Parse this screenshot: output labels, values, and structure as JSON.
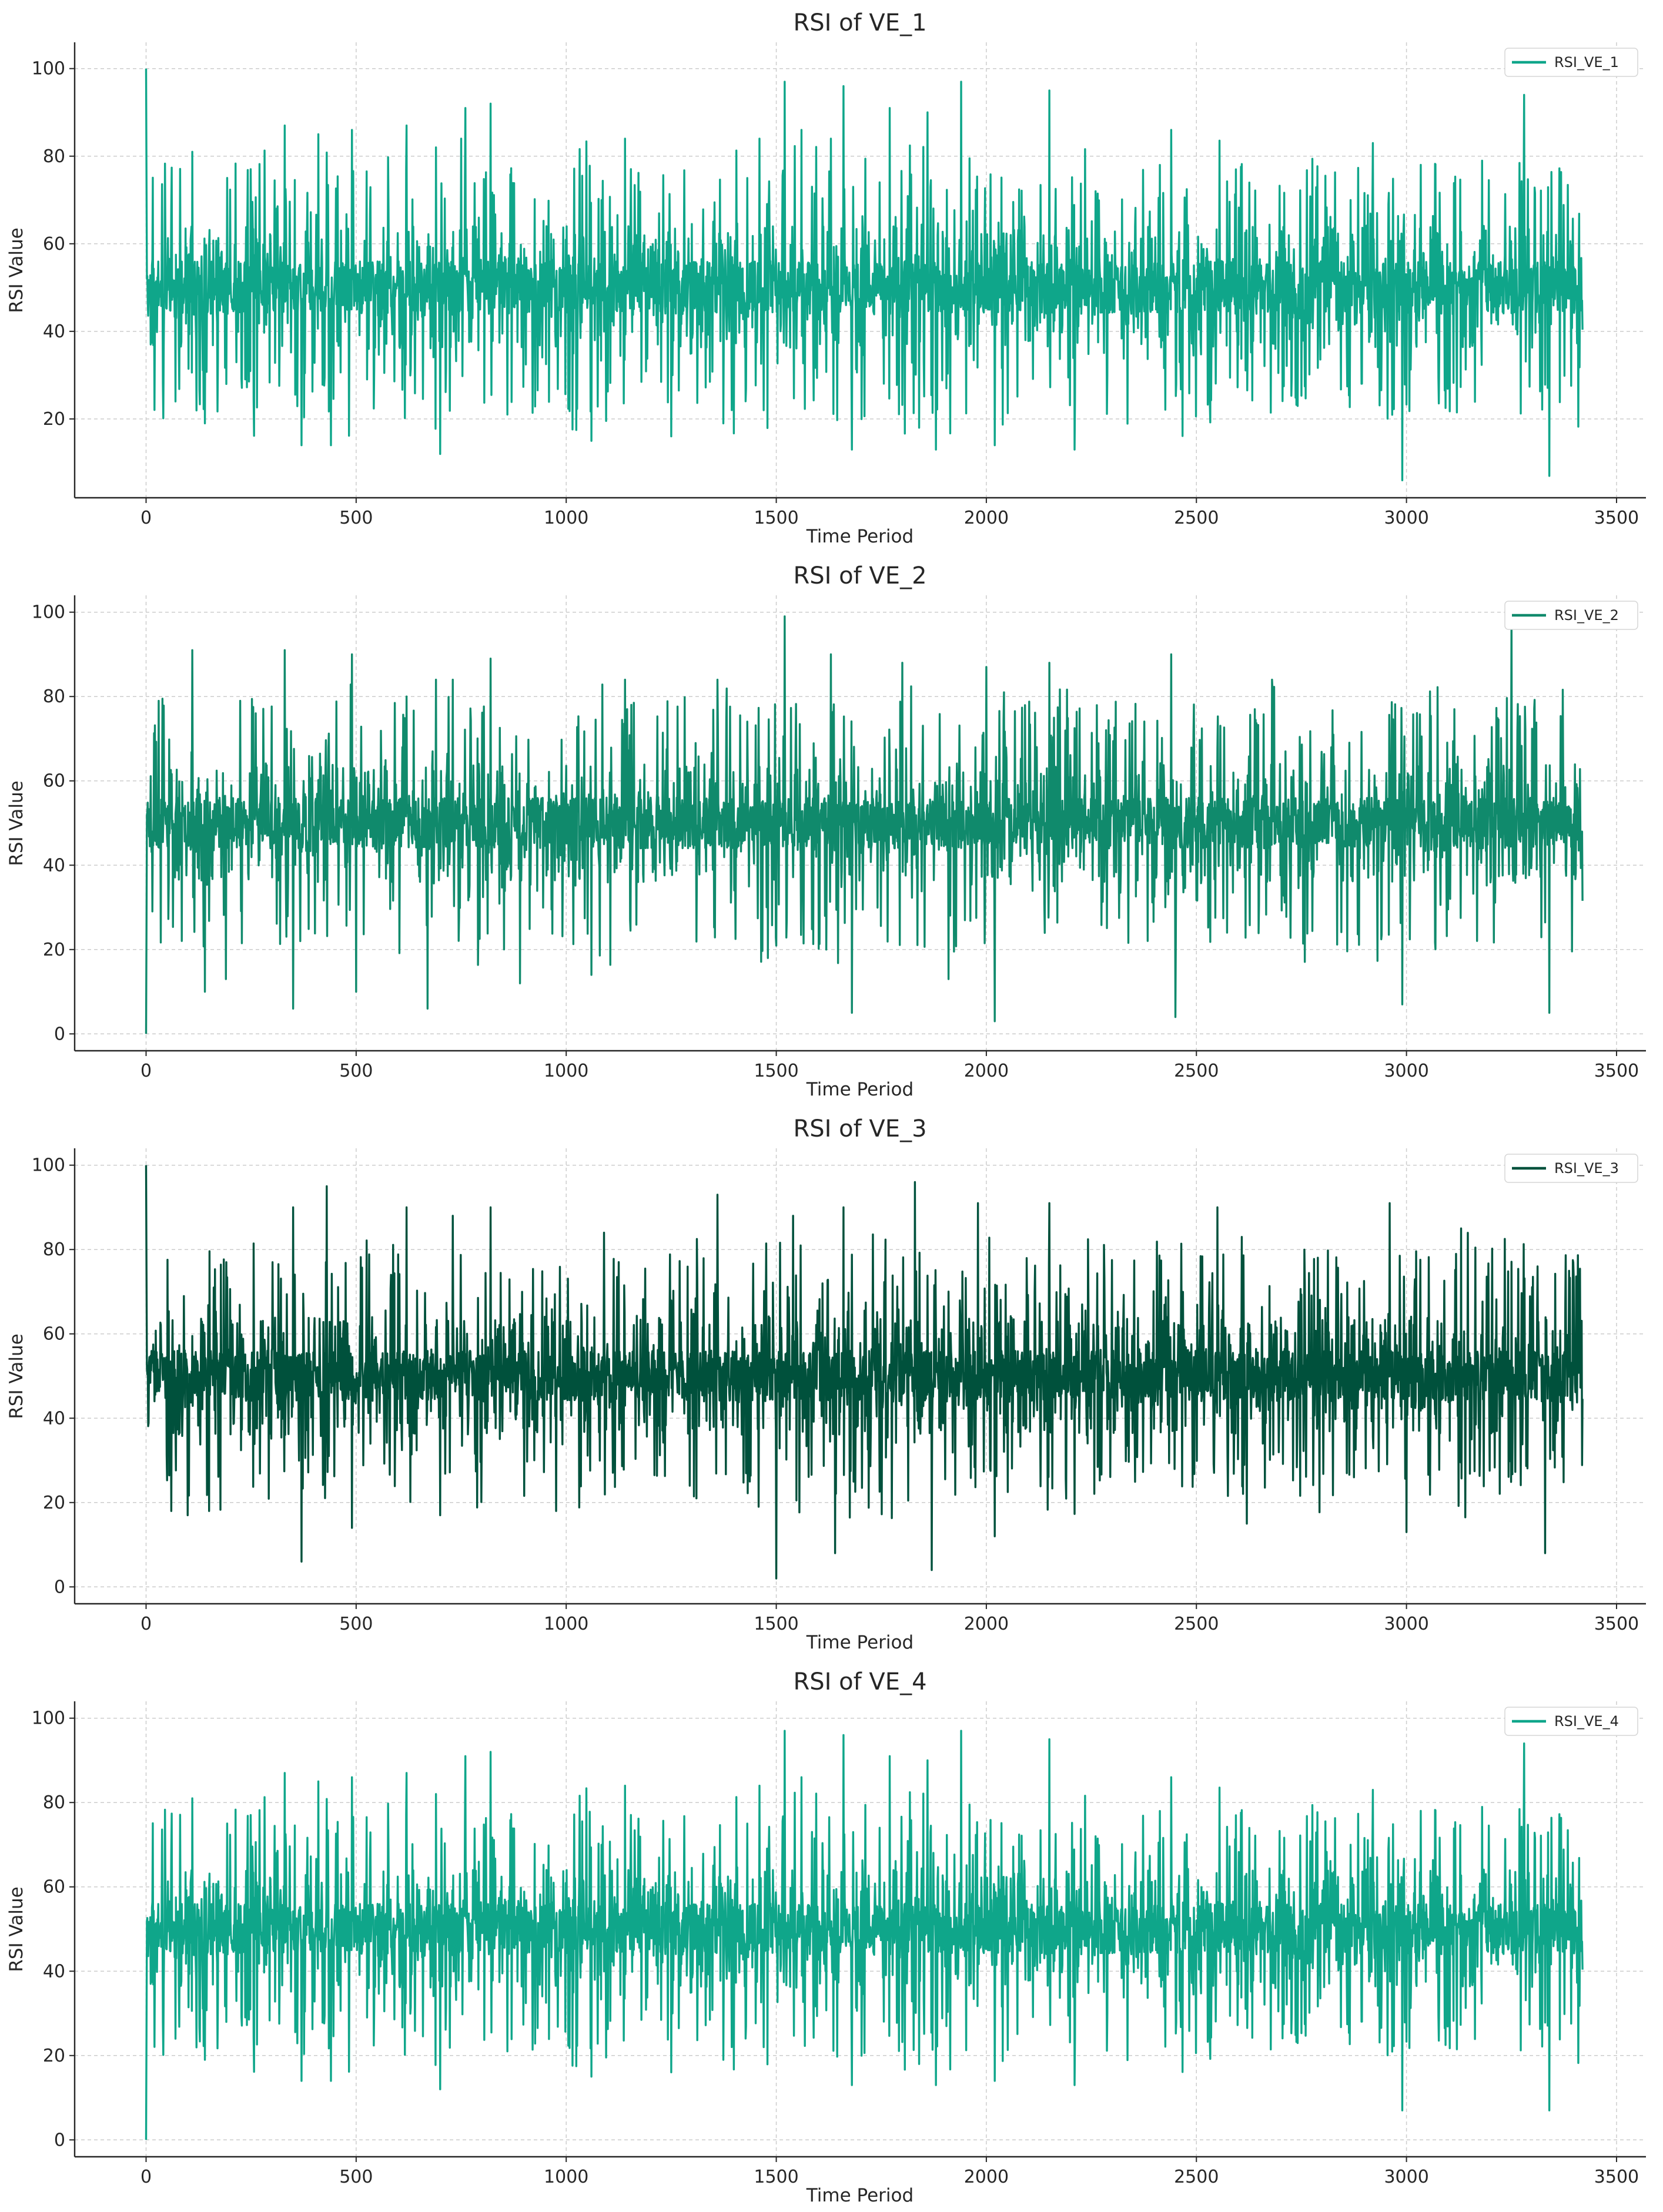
{
  "chart_data": [
    {
      "type": "line",
      "title": "RSI of VE_1",
      "xlabel": "Time Period",
      "ylabel": "RSI Value",
      "xlim": [
        -170,
        3570
      ],
      "ylim": [
        2,
        106
      ],
      "xticks": [
        0,
        500,
        1000,
        1500,
        2000,
        2500,
        3000,
        3500
      ],
      "yticks": [
        20,
        40,
        60,
        80,
        100
      ],
      "grid": true,
      "legend_position": "top-right",
      "n_points": 3420,
      "start_value": 100,
      "baseline": 50,
      "color": "#0fa68a",
      "seed": 11,
      "series": [
        {
          "name": "RSI_VE_1"
        }
      ],
      "spikes_up": [
        [
          110,
          81
        ],
        [
          330,
          87
        ],
        [
          410,
          85
        ],
        [
          490,
          86
        ],
        [
          620,
          87
        ],
        [
          690,
          82
        ],
        [
          750,
          84
        ],
        [
          760,
          91
        ],
        [
          820,
          92
        ],
        [
          1140,
          84
        ],
        [
          1460,
          84
        ],
        [
          1520,
          97
        ],
        [
          1560,
          86
        ],
        [
          1630,
          84
        ],
        [
          1660,
          96
        ],
        [
          1770,
          91
        ],
        [
          1860,
          90
        ],
        [
          1940,
          97
        ],
        [
          2150,
          95
        ],
        [
          2440,
          86
        ],
        [
          2920,
          83
        ],
        [
          3280,
          94
        ]
      ],
      "spikes_down": [
        [
          40,
          28
        ],
        [
          70,
          24
        ],
        [
          140,
          19
        ],
        [
          370,
          14
        ],
        [
          440,
          14
        ],
        [
          700,
          12
        ],
        [
          860,
          21
        ],
        [
          1060,
          15
        ],
        [
          1470,
          22
        ],
        [
          1680,
          13
        ],
        [
          1840,
          18
        ],
        [
          1880,
          13
        ],
        [
          2020,
          14
        ],
        [
          2210,
          13
        ],
        [
          2990,
          6
        ],
        [
          3340,
          7
        ]
      ]
    },
    {
      "type": "line",
      "title": "RSI of VE_2",
      "xlabel": "Time Period",
      "ylabel": "RSI Value",
      "xlim": [
        -170,
        3570
      ],
      "ylim": [
        -4,
        104
      ],
      "xticks": [
        0,
        500,
        1000,
        1500,
        2000,
        2500,
        3000,
        3500
      ],
      "yticks": [
        0,
        20,
        40,
        60,
        80,
        100
      ],
      "grid": true,
      "legend_position": "top-right",
      "n_points": 3420,
      "start_value": 0,
      "baseline": 50,
      "color": "#108a6c",
      "seed": 23,
      "series": [
        {
          "name": "RSI_VE_2"
        }
      ],
      "spikes_up": [
        [
          110,
          91
        ],
        [
          330,
          91
        ],
        [
          490,
          90
        ],
        [
          620,
          80
        ],
        [
          690,
          84
        ],
        [
          730,
          84
        ],
        [
          820,
          89
        ],
        [
          1140,
          84
        ],
        [
          1360,
          84
        ],
        [
          1520,
          99
        ],
        [
          1630,
          90
        ],
        [
          1800,
          88
        ],
        [
          2000,
          87
        ],
        [
          2150,
          88
        ],
        [
          2440,
          90
        ],
        [
          2680,
          84
        ],
        [
          3250,
          99
        ]
      ],
      "spikes_down": [
        [
          140,
          10
        ],
        [
          190,
          13
        ],
        [
          350,
          6
        ],
        [
          500,
          10
        ],
        [
          670,
          6
        ],
        [
          890,
          12
        ],
        [
          1060,
          14
        ],
        [
          1480,
          18
        ],
        [
          1680,
          5
        ],
        [
          1910,
          13
        ],
        [
          2020,
          3
        ],
        [
          2450,
          4
        ],
        [
          2990,
          7
        ],
        [
          3340,
          5
        ]
      ]
    },
    {
      "type": "line",
      "title": "RSI of VE_3",
      "xlabel": "Time Period",
      "ylabel": "RSI Value",
      "xlim": [
        -170,
        3570
      ],
      "ylim": [
        -4,
        104
      ],
      "xticks": [
        0,
        500,
        1000,
        1500,
        2000,
        2500,
        3000,
        3500
      ],
      "yticks": [
        0,
        20,
        40,
        60,
        80,
        100
      ],
      "grid": true,
      "legend_position": "top-right",
      "n_points": 3420,
      "start_value": 100,
      "baseline": 50,
      "color": "#00513c",
      "seed": 37,
      "series": [
        {
          "name": "RSI_VE_3"
        }
      ],
      "spikes_up": [
        [
          350,
          90
        ],
        [
          430,
          95
        ],
        [
          620,
          90
        ],
        [
          730,
          88
        ],
        [
          820,
          90
        ],
        [
          1360,
          93
        ],
        [
          1540,
          88
        ],
        [
          1660,
          90
        ],
        [
          1830,
          96
        ],
        [
          1980,
          91
        ],
        [
          2150,
          91
        ],
        [
          2550,
          90
        ],
        [
          2960,
          91
        ],
        [
          3130,
          85
        ]
      ],
      "spikes_down": [
        [
          60,
          18
        ],
        [
          150,
          18
        ],
        [
          370,
          6
        ],
        [
          490,
          14
        ],
        [
          700,
          17
        ],
        [
          1310,
          21
        ],
        [
          1500,
          2
        ],
        [
          1640,
          8
        ],
        [
          1870,
          4
        ],
        [
          2020,
          12
        ],
        [
          2620,
          15
        ],
        [
          3000,
          13
        ],
        [
          3330,
          8
        ]
      ]
    },
    {
      "type": "line",
      "title": "RSI of VE_4",
      "xlabel": "Time Period",
      "ylabel": "RSI Value",
      "xlim": [
        -170,
        3570
      ],
      "ylim": [
        -4,
        104
      ],
      "xticks": [
        0,
        500,
        1000,
        1500,
        2000,
        2500,
        3000,
        3500
      ],
      "yticks": [
        0,
        20,
        40,
        60,
        80,
        100
      ],
      "grid": true,
      "legend_position": "top-right",
      "n_points": 3420,
      "start_value": 0,
      "baseline": 50,
      "color": "#0fa68a",
      "seed": 11,
      "series": [
        {
          "name": "RSI_VE_4"
        }
      ],
      "spikes_up": [
        [
          110,
          81
        ],
        [
          330,
          87
        ],
        [
          410,
          85
        ],
        [
          490,
          86
        ],
        [
          620,
          87
        ],
        [
          690,
          82
        ],
        [
          760,
          91
        ],
        [
          820,
          92
        ],
        [
          1140,
          84
        ],
        [
          1460,
          84
        ],
        [
          1520,
          97
        ],
        [
          1560,
          86
        ],
        [
          1660,
          96
        ],
        [
          1770,
          91
        ],
        [
          1860,
          90
        ],
        [
          1940,
          97
        ],
        [
          2150,
          95
        ],
        [
          2440,
          86
        ],
        [
          2920,
          83
        ],
        [
          3280,
          94
        ]
      ],
      "spikes_down": [
        [
          40,
          28
        ],
        [
          70,
          24
        ],
        [
          140,
          19
        ],
        [
          370,
          14
        ],
        [
          440,
          14
        ],
        [
          700,
          12
        ],
        [
          860,
          21
        ],
        [
          1060,
          15
        ],
        [
          1470,
          22
        ],
        [
          1680,
          13
        ],
        [
          1840,
          18
        ],
        [
          1880,
          13
        ],
        [
          2020,
          14
        ],
        [
          2210,
          13
        ],
        [
          2990,
          7
        ],
        [
          3340,
          7
        ]
      ]
    }
  ]
}
